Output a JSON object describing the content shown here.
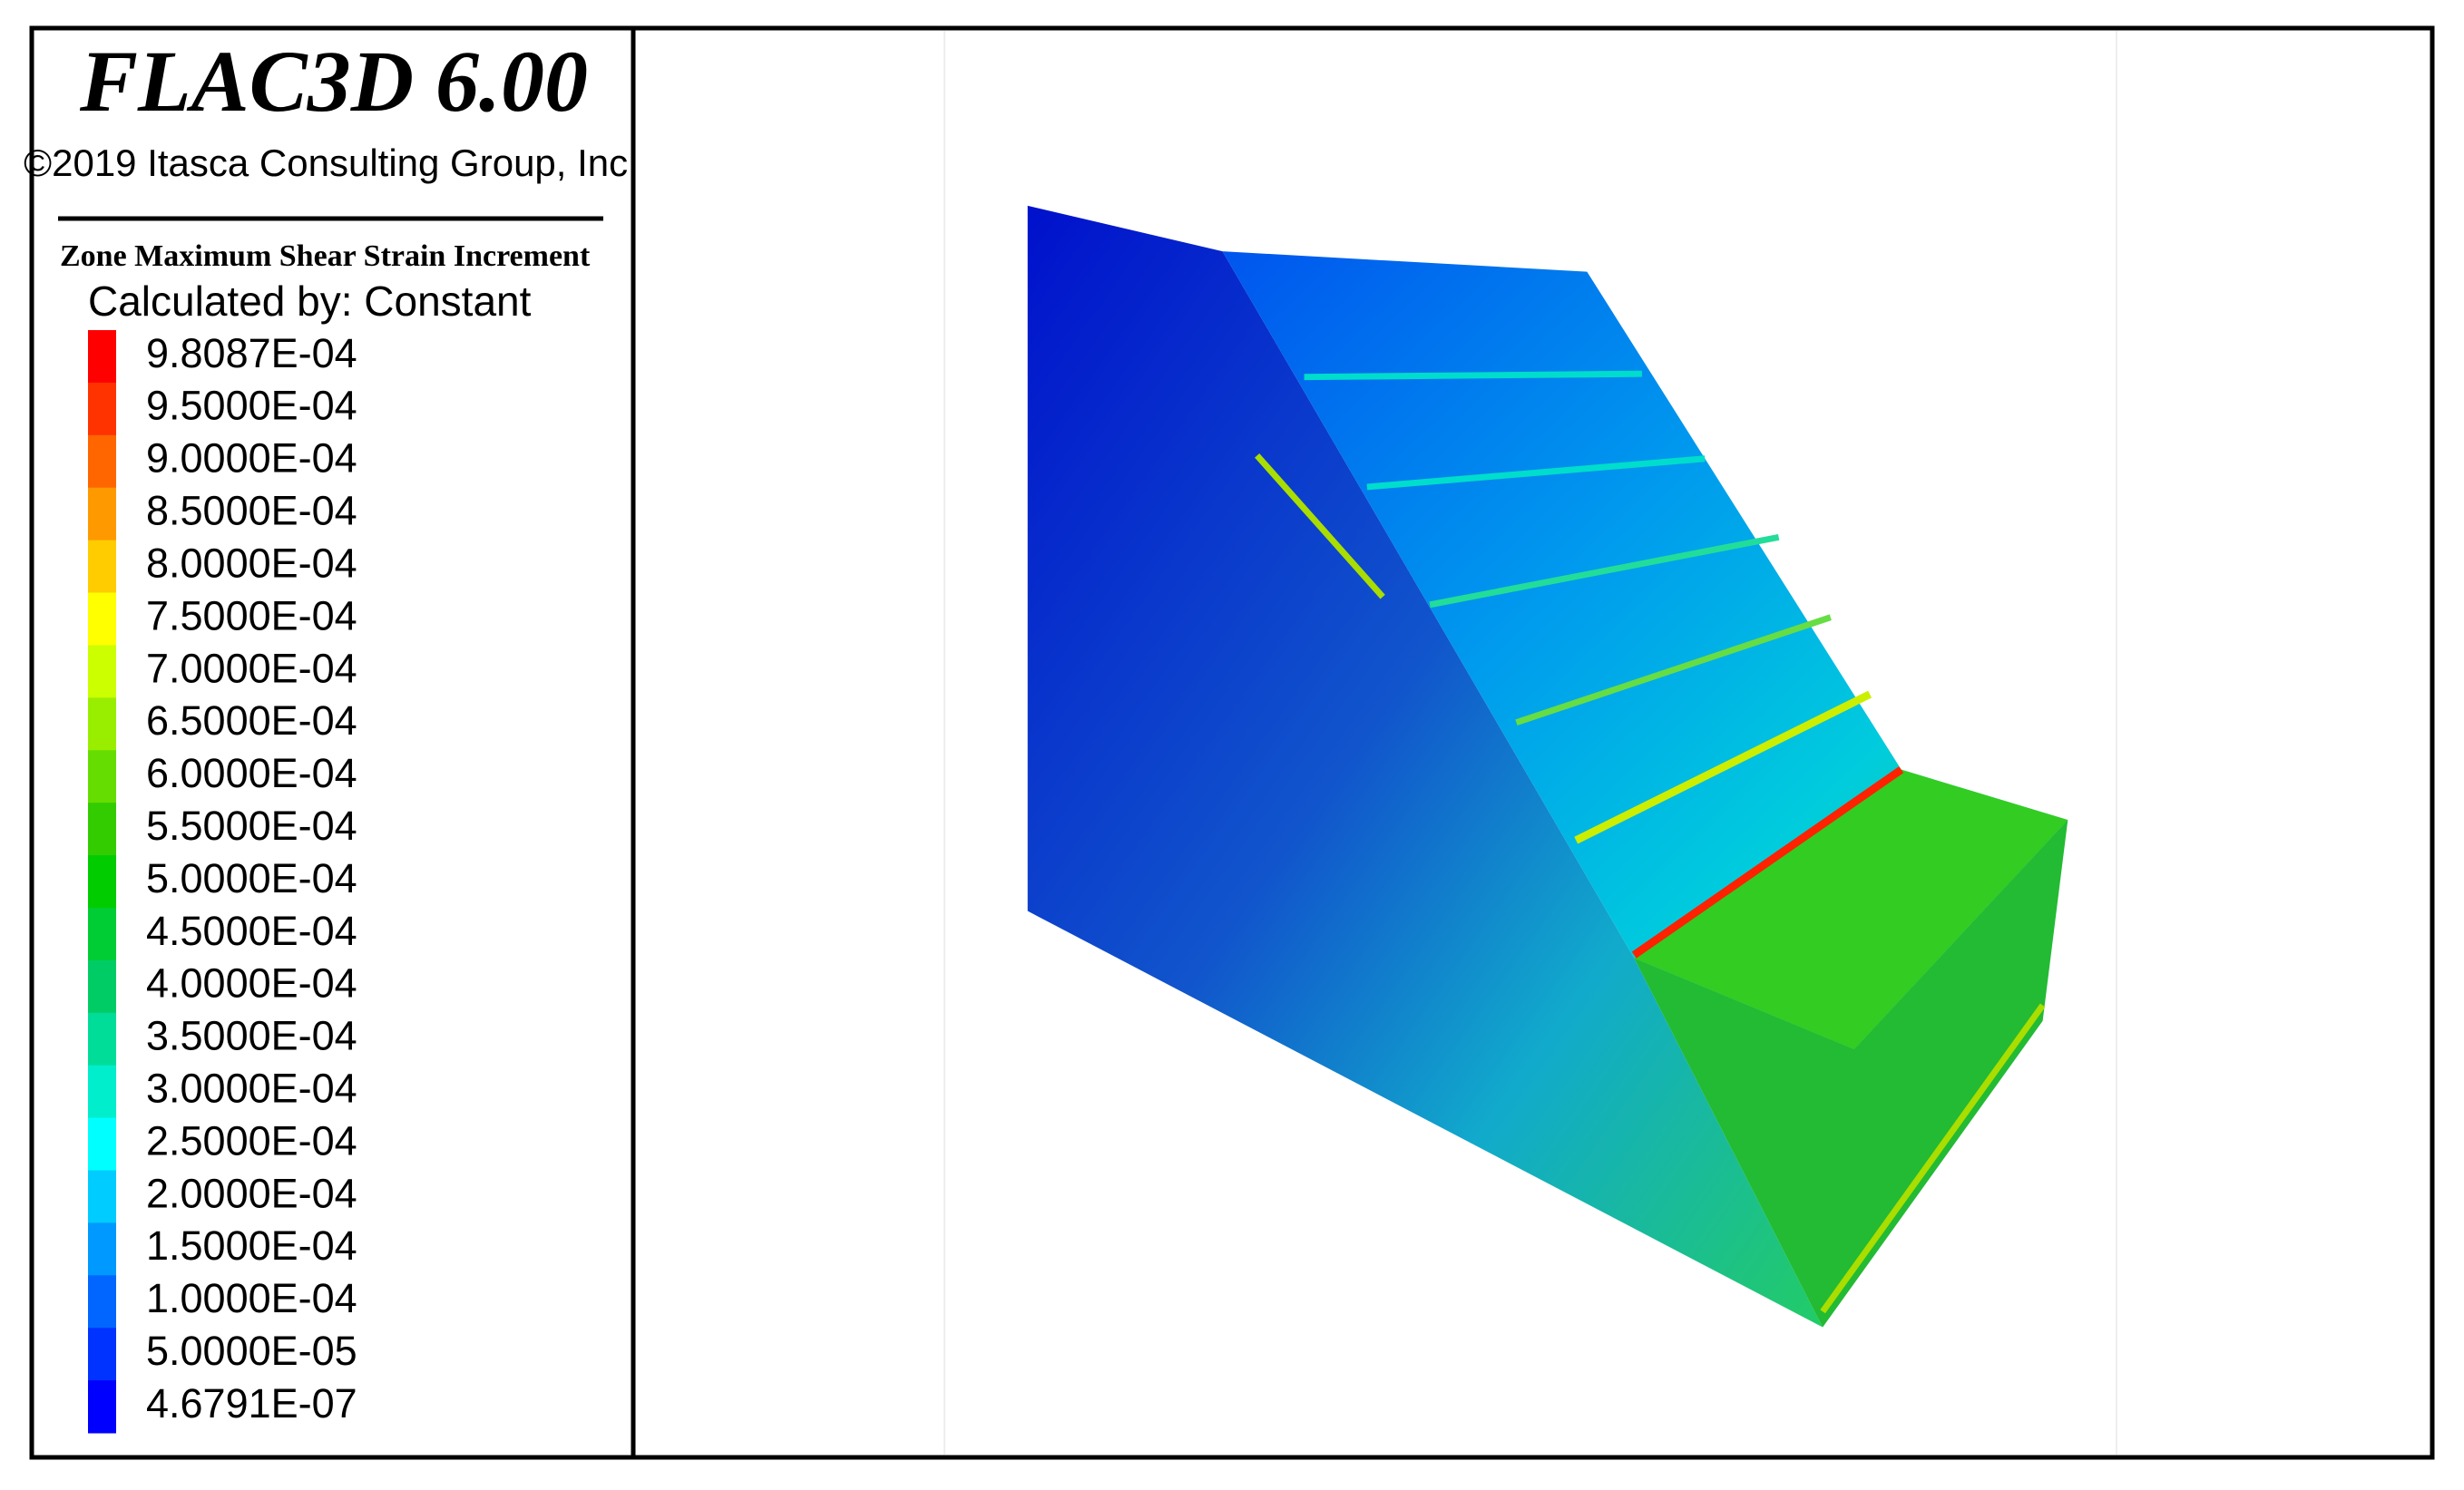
{
  "header": {
    "title": "FLAC3D 6.00",
    "copyright": "©2019 Itasca Consulting Group, Inc."
  },
  "legend": {
    "title": "Zone Maximum Shear Strain Increment",
    "subtitle": "Calculated by: Constant",
    "entries": [
      {
        "label": "9.8087E-04",
        "color": "#ff0000"
      },
      {
        "label": "9.5000E-04",
        "color": "#ff3300"
      },
      {
        "label": "9.0000E-04",
        "color": "#ff6600"
      },
      {
        "label": "8.5000E-04",
        "color": "#ff9900"
      },
      {
        "label": "8.0000E-04",
        "color": "#ffcc00"
      },
      {
        "label": "7.5000E-04",
        "color": "#ffff00"
      },
      {
        "label": "7.0000E-04",
        "color": "#ccff00"
      },
      {
        "label": "6.5000E-04",
        "color": "#99ee00"
      },
      {
        "label": "6.0000E-04",
        "color": "#66dd00"
      },
      {
        "label": "5.5000E-04",
        "color": "#33cc00"
      },
      {
        "label": "5.0000E-04",
        "color": "#00cc00"
      },
      {
        "label": "4.5000E-04",
        "color": "#00cc33"
      },
      {
        "label": "4.0000E-04",
        "color": "#00cc66"
      },
      {
        "label": "3.5000E-04",
        "color": "#00dd99"
      },
      {
        "label": "3.0000E-04",
        "color": "#00eecc"
      },
      {
        "label": "2.5000E-04",
        "color": "#00ffff"
      },
      {
        "label": "2.0000E-04",
        "color": "#00ccff"
      },
      {
        "label": "1.5000E-04",
        "color": "#0099ff"
      },
      {
        "label": "1.0000E-04",
        "color": "#0066ff"
      },
      {
        "label": "5.0000E-05",
        "color": "#0033ff"
      },
      {
        "label": "4.6791E-07",
        "color": "#0000ff"
      }
    ]
  }
}
